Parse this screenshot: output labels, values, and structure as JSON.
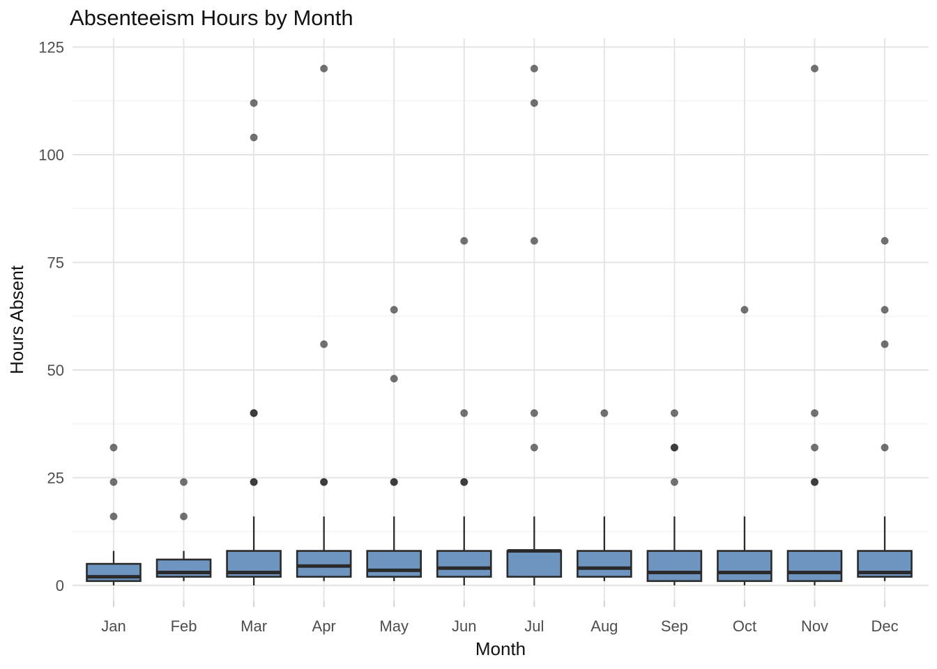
{
  "chart_data": {
    "type": "boxplot",
    "title": "Absenteeism Hours by Month",
    "xlabel": "Month",
    "ylabel": "Hours Absent",
    "ylim": [
      0,
      125
    ],
    "y_ticks": [
      0,
      25,
      50,
      75,
      100,
      125
    ],
    "y_minor_gridlines": [
      12.5,
      37.5,
      62.5,
      87.5,
      112.5
    ],
    "grid": "on",
    "legend": "none",
    "categories": [
      "Jan",
      "Feb",
      "Mar",
      "Apr",
      "May",
      "Jun",
      "Jul",
      "Aug",
      "Sep",
      "Oct",
      "Nov",
      "Dec"
    ],
    "boxes": [
      {
        "month": "Jan",
        "whisker_low": 0,
        "q1": 1,
        "median": 2,
        "q3": 5,
        "whisker_high": 8,
        "outliers": [
          16,
          24,
          32
        ]
      },
      {
        "month": "Feb",
        "whisker_low": 1,
        "q1": 2,
        "median": 3,
        "q3": 6,
        "whisker_high": 8,
        "outliers": [
          16,
          24
        ]
      },
      {
        "month": "Mar",
        "whisker_low": 0,
        "q1": 2,
        "median": 3,
        "q3": 8,
        "whisker_high": 16,
        "outliers": [
          24,
          24,
          40,
          40,
          104,
          112
        ]
      },
      {
        "month": "Apr",
        "whisker_low": 1,
        "q1": 2,
        "median": 4.5,
        "q3": 8,
        "whisker_high": 16,
        "outliers": [
          24,
          24,
          56,
          120
        ]
      },
      {
        "month": "May",
        "whisker_low": 1,
        "q1": 2,
        "median": 3.5,
        "q3": 8,
        "whisker_high": 16,
        "outliers": [
          24,
          24,
          48,
          64
        ]
      },
      {
        "month": "Jun",
        "whisker_low": 0,
        "q1": 2,
        "median": 4,
        "q3": 8,
        "whisker_high": 16,
        "outliers": [
          24,
          24,
          40,
          80
        ]
      },
      {
        "month": "Jul",
        "whisker_low": 0,
        "q1": 2,
        "median": 8,
        "q3": 8,
        "whisker_high": 16,
        "outliers": [
          32,
          40,
          80,
          112,
          120
        ]
      },
      {
        "month": "Aug",
        "whisker_low": 1,
        "q1": 2,
        "median": 4,
        "q3": 8,
        "whisker_high": 16,
        "outliers": [
          40
        ]
      },
      {
        "month": "Sep",
        "whisker_low": 0,
        "q1": 1,
        "median": 3,
        "q3": 8,
        "whisker_high": 16,
        "outliers": [
          24,
          32,
          32,
          40
        ]
      },
      {
        "month": "Oct",
        "whisker_low": 0,
        "q1": 1,
        "median": 3,
        "q3": 8,
        "whisker_high": 16,
        "outliers": [
          64
        ]
      },
      {
        "month": "Nov",
        "whisker_low": 0,
        "q1": 1,
        "median": 3,
        "q3": 8,
        "whisker_high": 8,
        "outliers": [
          24,
          24,
          32,
          40,
          120
        ]
      },
      {
        "month": "Dec",
        "whisker_low": 1,
        "q1": 2,
        "median": 3,
        "q3": 8,
        "whisker_high": 16,
        "outliers": [
          32,
          56,
          64,
          80
        ]
      }
    ],
    "colors": {
      "box_fill": "#6d95c0",
      "box_border": "#2a2a2a",
      "median": "#2a2a2a",
      "whisker": "#2a2a2a",
      "outlier": "rgba(30,30,30,0.62)",
      "outlier_rim": "rgba(0,0,0,0.28)",
      "gridline_major": "#e4e4e4",
      "gridline_minor": "#efefef",
      "axis_tick": "#d4d4d4",
      "tick_label": "#4d4d4d",
      "title_text": "#121212",
      "background": "#ffffff"
    }
  }
}
